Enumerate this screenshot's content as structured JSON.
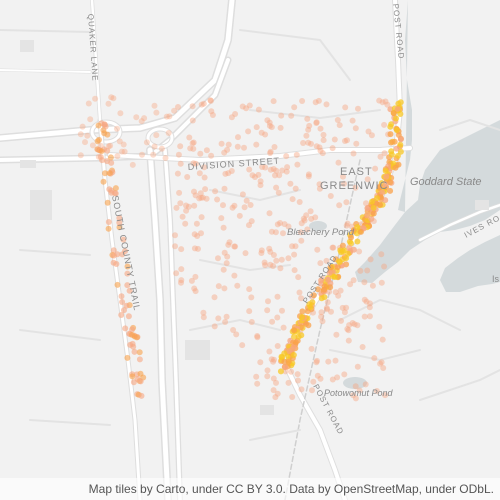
{
  "map": {
    "labels": {
      "quaker_lane": "QUAKER LANE",
      "post_road_north": "POST ROAD",
      "division_street": "DIVISION STREET",
      "east": "EAST",
      "greenwich": "GREENWIC",
      "goddard_state": "Goddard State",
      "south_county_trail": "SOUTH COUNTY TRAIL",
      "bleachery_pond": "Bleachery Pond",
      "post_road_middle": "POST ROAD",
      "ives_road": "IVES ROA",
      "is": "Is",
      "potowomut_pond": "Potowomut Pond",
      "post_road_south": "POST ROAD"
    },
    "colors": {
      "land": "#f2f2f2",
      "water": "#d4dadc",
      "road": "#ffffff",
      "road_edge": "#dedede",
      "label": "#8a8a8a",
      "point_faint": "#f7a782",
      "point_warm": "#f9a24b",
      "point_hot": "#f8c825"
    }
  },
  "attribution": "Map tiles by Carto, under CC BY 3.0. Data by OpenStreetMap, under ODbL."
}
